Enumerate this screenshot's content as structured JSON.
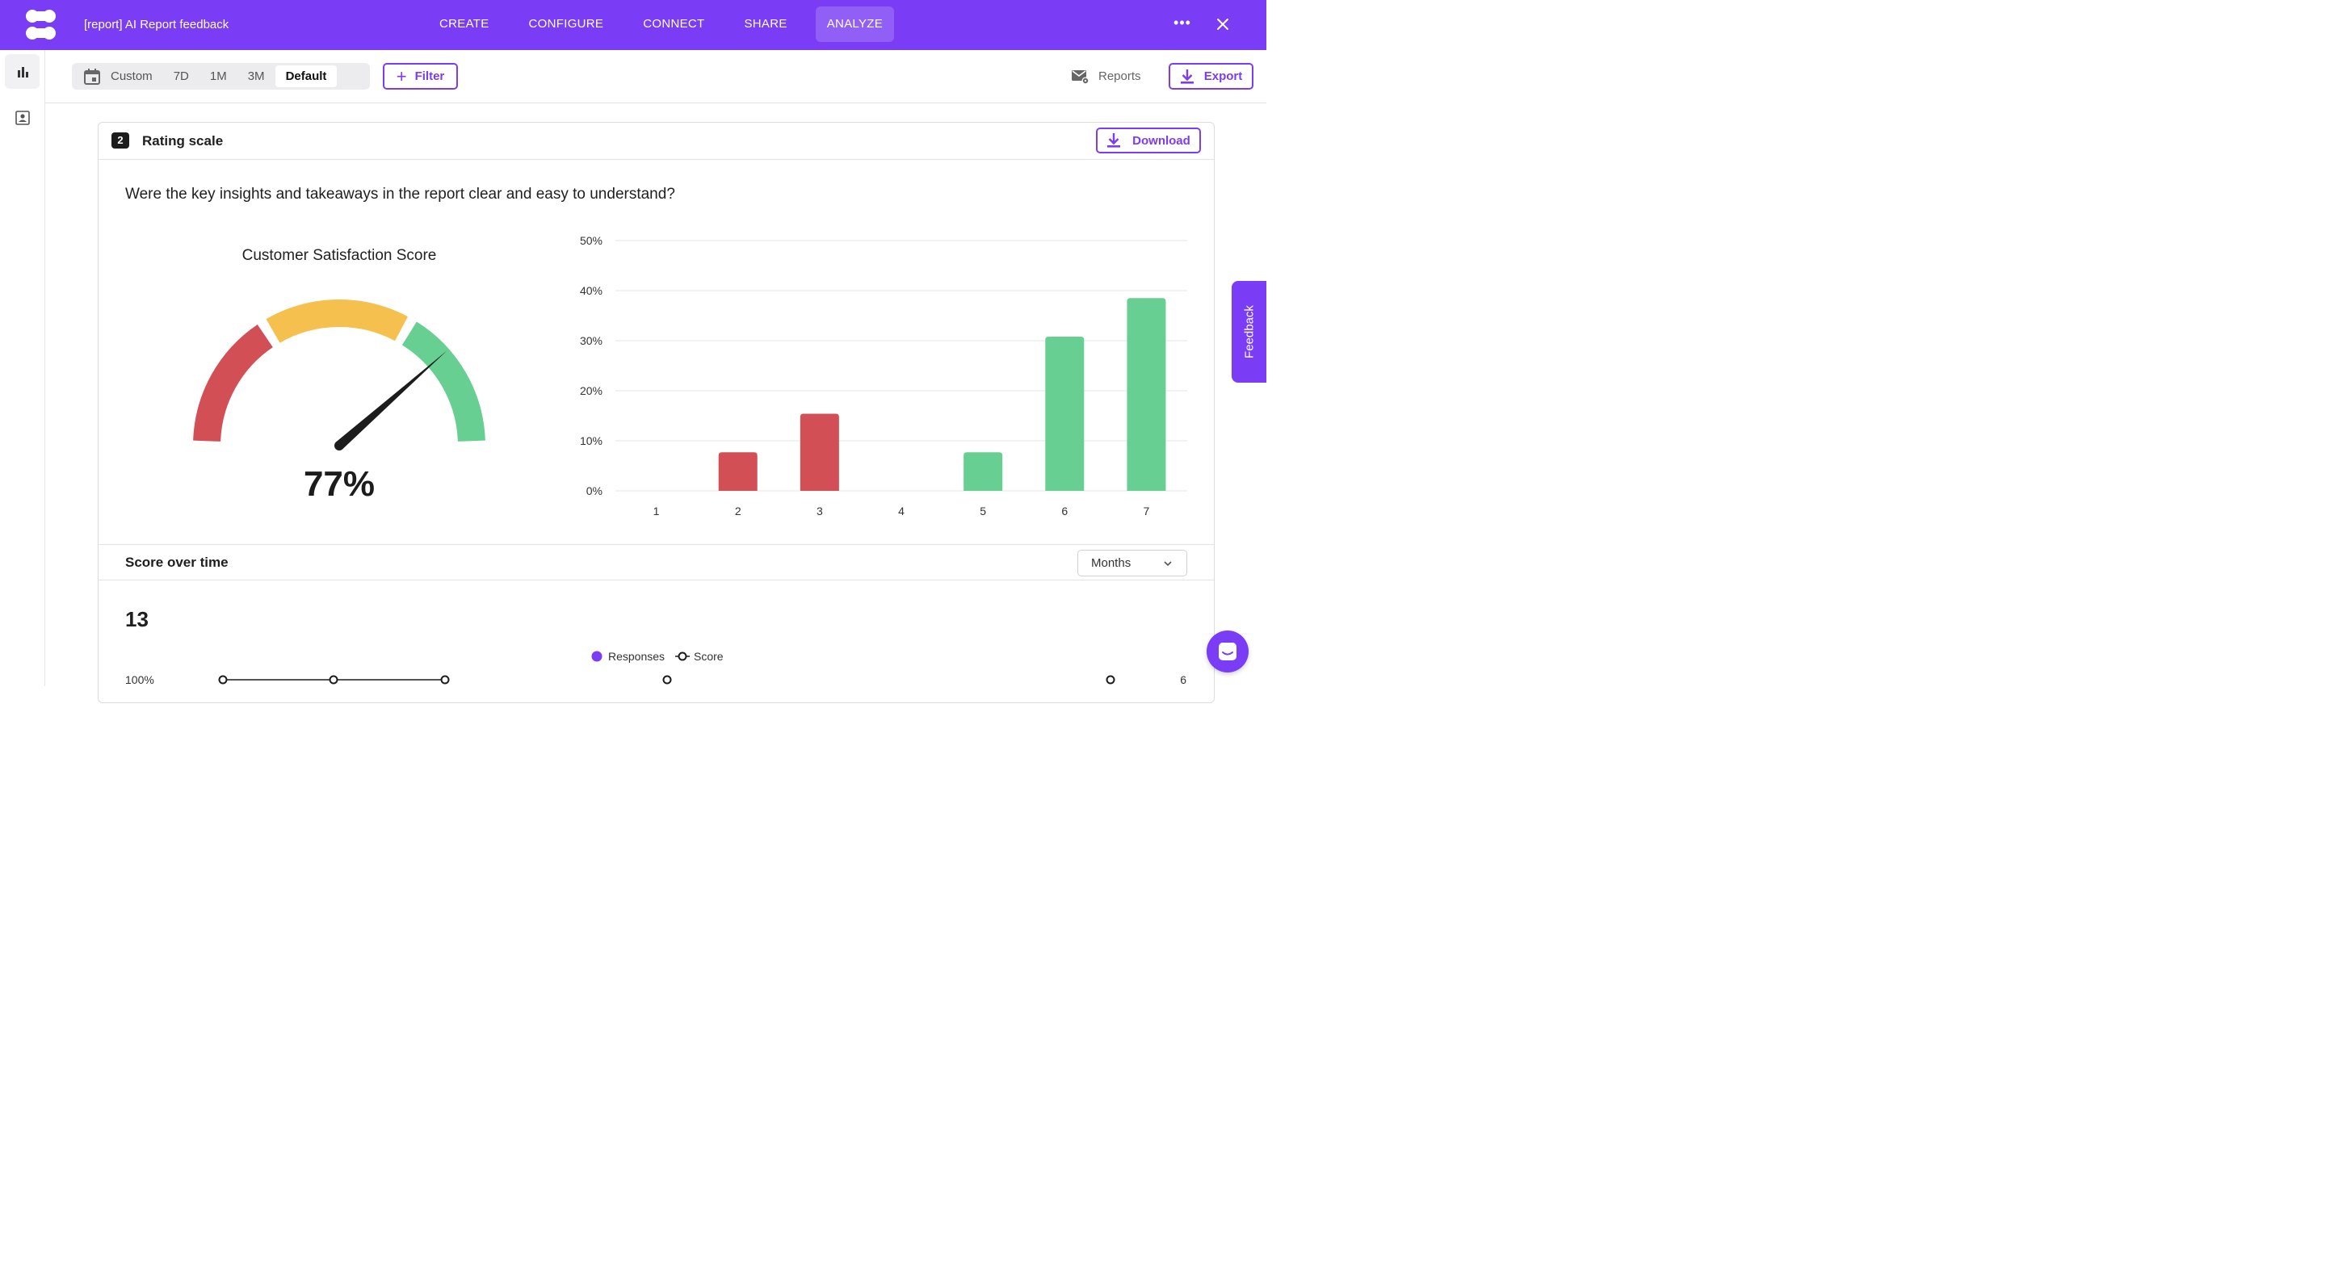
{
  "app": {
    "doc_title": "[report] AI Report feedback",
    "nav": [
      {
        "label": "CREATE",
        "active": false
      },
      {
        "label": "CONFIGURE",
        "active": false
      },
      {
        "label": "CONNECT",
        "active": false
      },
      {
        "label": "SHARE",
        "active": false
      },
      {
        "label": "ANALYZE",
        "active": true
      }
    ],
    "more_icon": "more-horizontal-icon",
    "close_icon": "close-icon",
    "brand_color": "#7a3cf4"
  },
  "sidebar": {
    "items": [
      {
        "icon": "bar-chart-icon",
        "active": true
      },
      {
        "icon": "contact-card-icon",
        "active": false
      }
    ]
  },
  "toolbar": {
    "ranges": [
      "Custom",
      "7D",
      "1M",
      "3M",
      "Default"
    ],
    "selected_range": "Default",
    "filter_label": "Filter",
    "reports_label": "Reports",
    "export_label": "Export"
  },
  "card": {
    "number": "2",
    "title": "Rating scale",
    "download_label": "Download",
    "question": "Were the key insights and takeaways in the report clear and easy to understand?",
    "gauge": {
      "title": "Customer Satisfaction Score",
      "value_label": "77%",
      "value": 77,
      "colors": {
        "low": "#d24f55",
        "mid": "#f5c04e",
        "high": "#66cf91"
      }
    }
  },
  "chart_data": [
    {
      "type": "bar",
      "categories": [
        "1",
        "2",
        "3",
        "4",
        "5",
        "6",
        "7"
      ],
      "values": [
        0,
        7.7,
        15.4,
        0,
        7.7,
        30.8,
        38.5
      ],
      "colors": [
        "#d24f55",
        "#d24f55",
        "#d24f55",
        "#d24f55",
        "#66cf91",
        "#66cf91",
        "#66cf91"
      ],
      "yticks": [
        "0%",
        "10%",
        "20%",
        "30%",
        "40%",
        "50%"
      ],
      "ylim": [
        0,
        50
      ],
      "grid": true
    },
    {
      "type": "line",
      "legend": [
        "Responses",
        "Score"
      ],
      "left_tick_top": "100%",
      "right_tick_top": "6"
    }
  ],
  "section2": {
    "title": "Score over time",
    "period_select": "Months",
    "response_count": "13"
  },
  "floating": {
    "feedback_label": "Feedback",
    "chat_icon": "chat-icon"
  }
}
